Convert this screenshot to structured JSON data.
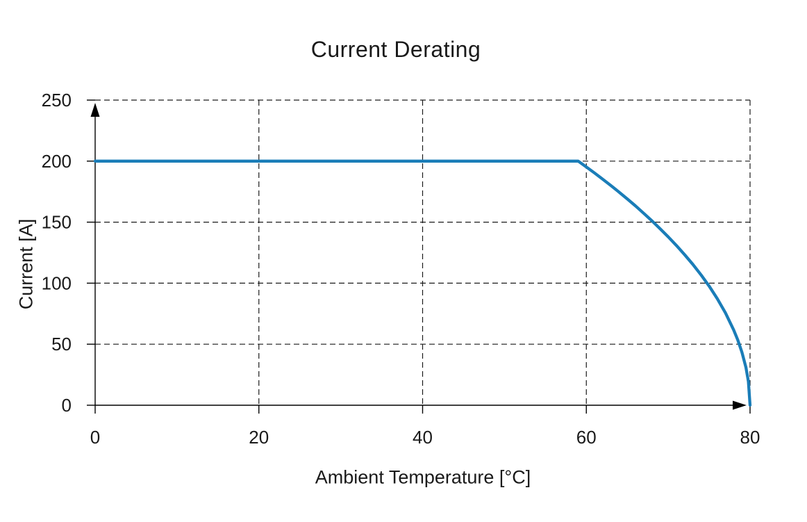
{
  "chart_data": {
    "type": "line",
    "title": "Current Derating",
    "xlabel": "Ambient Temperature [°C]",
    "ylabel": "Current [A]",
    "xlim": [
      0,
      80
    ],
    "ylim": [
      0,
      250
    ],
    "x_ticks": [
      0,
      20,
      40,
      60,
      80
    ],
    "y_ticks": [
      0,
      50,
      100,
      150,
      200,
      250
    ],
    "grid": "dashed",
    "legend": "none",
    "axis_arrows": true,
    "series": [
      {
        "color": "#1a7db8",
        "points": [
          [
            0,
            200
          ],
          [
            59,
            200
          ],
          [
            60,
            195.2
          ],
          [
            61,
            190.3
          ],
          [
            62,
            185.2
          ],
          [
            63,
            180.0
          ],
          [
            64,
            174.6
          ],
          [
            65,
            169.0
          ],
          [
            66,
            163.3
          ],
          [
            67,
            157.3
          ],
          [
            68,
            151.2
          ],
          [
            69,
            144.7
          ],
          [
            70,
            138.0
          ],
          [
            71,
            130.9
          ],
          [
            72,
            123.4
          ],
          [
            73,
            115.5
          ],
          [
            74,
            106.9
          ],
          [
            75,
            97.6
          ],
          [
            76,
            87.3
          ],
          [
            77,
            75.6
          ],
          [
            78,
            61.7
          ],
          [
            78.5,
            53.5
          ],
          [
            79,
            43.6
          ],
          [
            79.5,
            30.9
          ],
          [
            79.8,
            19.5
          ],
          [
            80,
            0
          ]
        ]
      }
    ],
    "colors": {
      "line": "#1a7db8",
      "text": "#1a1a1a",
      "grid": "#1a1a1a",
      "axis": "#000000",
      "background": "#ffffff"
    }
  }
}
